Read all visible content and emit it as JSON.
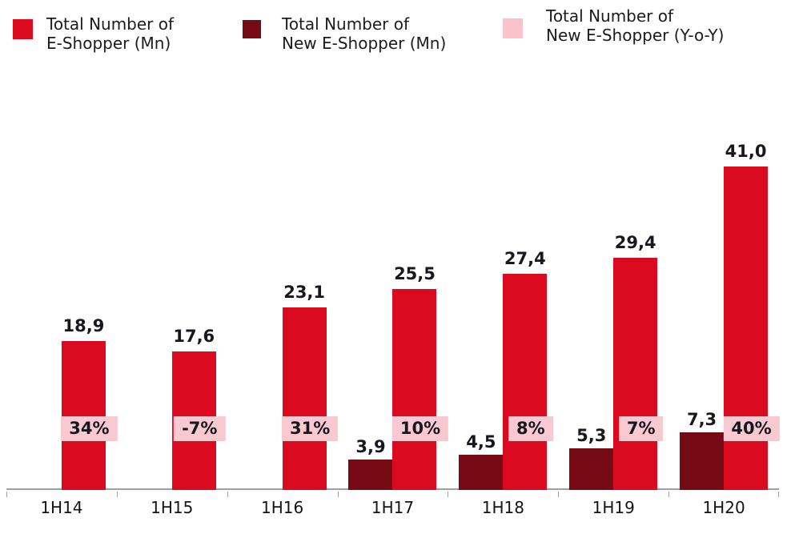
{
  "legend": {
    "items": [
      {
        "id": "total-e-shopper",
        "line1": "Total Number of",
        "line2": "E-Shopper (Mn)",
        "color": "#dc0a1e"
      },
      {
        "id": "new-e-shopper",
        "line1": "Total Number of",
        "line2": "New E-Shopper (Mn)",
        "color": "#770b15"
      },
      {
        "id": "new-e-shopper-yoy",
        "line1": "Total Number of",
        "line2": "New E-Shopper (Y-o-Y)",
        "color": "#f9c3cc"
      }
    ]
  },
  "chart_data": {
    "type": "bar",
    "title": "",
    "xlabel": "",
    "ylabel": "",
    "categories": [
      "1H14",
      "1H15",
      "1H16",
      "1H17",
      "1H18",
      "1H19",
      "1H20"
    ],
    "ylim": [
      0,
      45
    ],
    "grid": false,
    "legend_position": "top",
    "series": [
      {
        "name": "Total Number of E-Shopper (Mn)",
        "color": "#dc0a1e",
        "values": [
          18.9,
          17.6,
          23.1,
          25.5,
          27.4,
          29.4,
          41.0
        ],
        "labels": [
          "18,9",
          "17,6",
          "23,1",
          "25,5",
          "27,4",
          "29,4",
          "41,0"
        ]
      },
      {
        "name": "Total Number of New E-Shopper (Mn)",
        "color": "#770b15",
        "values": [
          null,
          null,
          null,
          3.9,
          4.5,
          5.3,
          7.3
        ],
        "labels": [
          "",
          "",
          "",
          "3,9",
          "4,5",
          "5,3",
          "7,3"
        ]
      },
      {
        "name": "Total Number of New E-Shopper (Y-o-Y)",
        "style": "badge",
        "color": "#f9c9d1",
        "values": [
          34,
          -7,
          31,
          10,
          8,
          7,
          40
        ],
        "labels": [
          "34%",
          "-7%",
          "31%",
          "10%",
          "8%",
          "7%",
          "40%"
        ]
      }
    ]
  }
}
